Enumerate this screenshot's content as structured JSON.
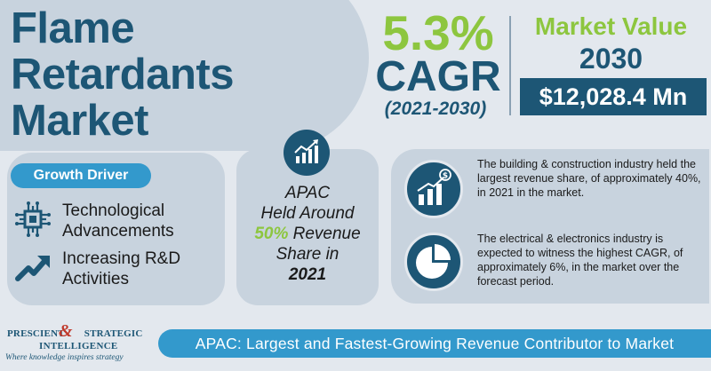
{
  "title": {
    "line1": "Flame",
    "line2": "Retardants",
    "line3": "Market"
  },
  "cagr": {
    "value": "5.3%",
    "label": "CAGR",
    "period": "(2021-2030)"
  },
  "market_value": {
    "title": "Market Value",
    "year": "2030",
    "amount": "$12,028.4 Mn"
  },
  "growth_driver": {
    "badge": "Growth Driver",
    "items": [
      {
        "line1": "Technological",
        "line2": "Advancements",
        "icon": "circuit-chip-icon"
      },
      {
        "line1": "Increasing R&D",
        "line2": "Activities",
        "icon": "trend-arrow-icon"
      }
    ]
  },
  "apac": {
    "icon": "growth-chart-icon",
    "line1": "APAC",
    "line2": "Held Around",
    "share": "50%",
    "line3_rest": " Revenue",
    "line4": "Share in",
    "year": "2021"
  },
  "facts": [
    {
      "icon": "bar-chart-dollar-icon",
      "text": "The building & construction industry held the largest revenue share, of approximately 40%, in 2021 in the market."
    },
    {
      "icon": "pie-chart-icon",
      "text": "The electrical & electronics industry is expected to witness the highest CAGR, of approximately 6%, in the market over the forecast period."
    }
  ],
  "logo": {
    "line1a": "PRESCIENT",
    "amp": "&",
    "line1b": "STRATEGIC",
    "line2": "INTELLIGENCE",
    "tagline": "Where knowledge inspires strategy"
  },
  "footer": {
    "text": "APAC: Largest and Fastest-Growing Revenue Contributor to Market"
  },
  "colors": {
    "navy": "#1d5675",
    "green": "#8dc63f",
    "blue": "#3399cc",
    "panel": "#c8d3de",
    "background": "#e3e8ee"
  }
}
